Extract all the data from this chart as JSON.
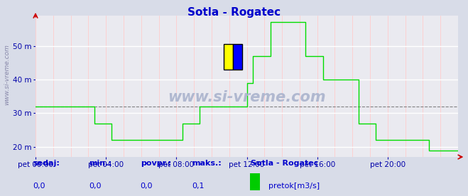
{
  "title": "Sotla - Rogatec",
  "title_color": "#0000cc",
  "bg_color": "#d8dce8",
  "plot_bg_color": "#eaeaf0",
  "grid_color_white": "#ffffff",
  "grid_color_pink": "#ffcccc",
  "line_color": "#00dd00",
  "mean_line_color": "#555555",
  "axis_color": "#0000aa",
  "xlabel_color": "#0000aa",
  "ylabel_color": "#0000aa",
  "arrow_color": "#cc0000",
  "ylim_min": 17,
  "ylim_max": 59,
  "yticks": [
    20,
    30,
    40,
    50
  ],
  "ytick_labels": [
    "20 m",
    "30 m",
    "40 m",
    "50 m"
  ],
  "mean_value": 32.0,
  "xtick_labels": [
    "pet 00:00",
    "pet 04:00",
    "pet 08:00",
    "pet 12:00",
    "pet 16:00",
    "pet 20:00"
  ],
  "xtick_positions": [
    0,
    48,
    96,
    144,
    192,
    240
  ],
  "total_points": 288,
  "watermark": "www.si-vreme.com",
  "watermark_color": "#b0b8d0",
  "sidebar_text": "www.si-vreme.com",
  "sidebar_color": "#8888aa",
  "legend_station": "Sotla - Rogatec",
  "legend_unit": "pretok[m3/s]",
  "legend_color": "#00cc00",
  "stat_labels": [
    "sedaj:",
    "min.:",
    "povpr.:",
    "maks.:"
  ],
  "stat_values": [
    "0,0",
    "0,0",
    "0,0",
    "0,1"
  ],
  "stat_label_color": "#0000cc",
  "stat_value_color": "#0000cc",
  "logo_yellow": "#ffff00",
  "logo_blue": "#0000ff",
  "logo_cyan": "#00ffff",
  "logo_red": "#ff0000",
  "y_data": [
    32,
    32,
    32,
    32,
    32,
    32,
    32,
    32,
    32,
    32,
    32,
    32,
    32,
    32,
    32,
    32,
    32,
    32,
    32,
    32,
    32,
    32,
    32,
    32,
    32,
    32,
    32,
    32,
    32,
    32,
    32,
    32,
    32,
    32,
    32,
    32,
    32,
    32,
    32,
    32,
    27,
    27,
    27,
    27,
    27,
    27,
    27,
    27,
    27,
    27,
    27,
    27,
    22,
    22,
    22,
    22,
    22,
    22,
    22,
    22,
    22,
    22,
    22,
    22,
    22,
    22,
    22,
    22,
    22,
    22,
    22,
    22,
    22,
    22,
    22,
    22,
    22,
    22,
    22,
    22,
    22,
    22,
    22,
    22,
    22,
    22,
    22,
    22,
    22,
    22,
    22,
    22,
    22,
    22,
    22,
    22,
    22,
    22,
    22,
    22,
    27,
    27,
    27,
    27,
    27,
    27,
    27,
    27,
    27,
    27,
    27,
    27,
    32,
    32,
    32,
    32,
    32,
    32,
    32,
    32,
    32,
    32,
    32,
    32,
    32,
    32,
    32,
    32,
    32,
    32,
    32,
    32,
    32,
    32,
    32,
    32,
    32,
    32,
    32,
    32,
    32,
    32,
    32,
    32,
    39,
    39,
    39,
    39,
    47,
    47,
    47,
    47,
    47,
    47,
    47,
    47,
    47,
    47,
    47,
    47,
    57,
    57,
    57,
    57,
    57,
    57,
    57,
    57,
    57,
    57,
    57,
    57,
    57,
    57,
    57,
    57,
    57,
    57,
    57,
    57,
    57,
    57,
    57,
    57,
    47,
    47,
    47,
    47,
    47,
    47,
    47,
    47,
    47,
    47,
    47,
    47,
    40,
    40,
    40,
    40,
    40,
    40,
    40,
    40,
    40,
    40,
    40,
    40,
    40,
    40,
    40,
    40,
    40,
    40,
    40,
    40,
    40,
    40,
    40,
    40,
    27,
    27,
    27,
    27,
    27,
    27,
    27,
    27,
    27,
    27,
    27,
    27,
    22,
    22,
    22,
    22,
    22,
    22,
    22,
    22,
    22,
    22,
    22,
    22,
    22,
    22,
    22,
    22,
    22,
    22,
    22,
    22,
    22,
    22,
    22,
    22,
    22,
    22,
    22,
    22,
    22,
    22,
    22,
    22,
    22,
    22,
    22,
    22,
    19,
    19,
    19,
    19,
    19,
    19,
    19,
    19,
    19,
    19,
    19,
    19,
    19,
    19,
    19,
    19,
    19,
    19,
    19,
    19,
    19,
    19,
    19,
    19
  ]
}
